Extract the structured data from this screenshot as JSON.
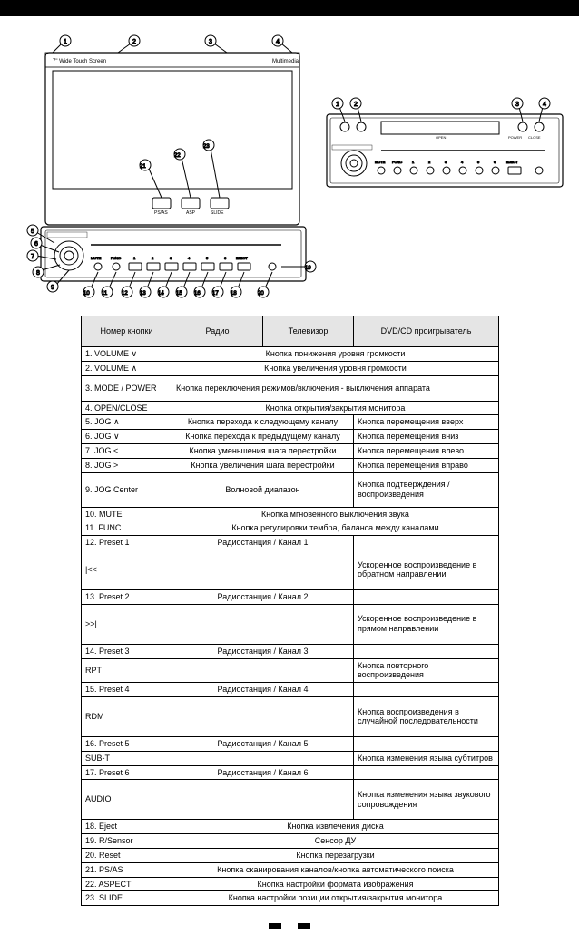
{
  "headers": {
    "col1": "Номер кнопки",
    "col2": "Радио",
    "col3": "Телевизор",
    "col4": "DVD/CD проигрыватель"
  },
  "rows": [
    {
      "label": "1. VOLUME ∨",
      "span": "full",
      "text": "Кнопка понижения уровня громкости"
    },
    {
      "label": "2. VOLUME ∧",
      "span": "full",
      "text": "Кнопка увеличения уровня громкости"
    },
    {
      "label": "3. MODE / POWER",
      "span": "full",
      "text": "Кнопка переключения режимов/включения - выключения аппарата",
      "tall": true
    },
    {
      "label": "4. OPEN/CLOSE",
      "span": "full",
      "text": "Кнопка открытия/закрытия монитора"
    },
    {
      "label": "5. JOG ∧",
      "span": "split",
      "mid": "Кнопка перехода к следующему каналу",
      "right": "Кнопка перемещения вверх"
    },
    {
      "label": "6. JOG ∨",
      "span": "split",
      "mid": "Кнопка перехода к предыдущему каналу",
      "right": "Кнопка перемещения вниз"
    },
    {
      "label": "7. JOG <",
      "span": "split",
      "mid": "Кнопка уменьшения шага перестройки",
      "right": "Кнопка перемещения влево"
    },
    {
      "label": "8. JOG >",
      "span": "split",
      "mid": "Кнопка увеличения шага перестройки",
      "right": "Кнопка перемещения вправо"
    },
    {
      "label": "9. JOG Center",
      "span": "split",
      "mid": "Волновой диапазон",
      "right": "Кнопка подтверждения / воспроизведения",
      "tall": true
    },
    {
      "label": "10. MUTE",
      "span": "full",
      "text": "Кнопка мгновенного выключения звука"
    },
    {
      "label": "11. FUNC",
      "span": "full",
      "text": "Кнопка регулировки тембра, баланса между каналами"
    },
    {
      "label": "12. Preset 1",
      "span": "mid",
      "text": "Радиостанция / Канал 1"
    },
    {
      "label": "|<<",
      "span": "right",
      "right": "Ускоренное воспроизведение в обратном направлении",
      "tall": true
    },
    {
      "label": "13. Preset 2",
      "span": "mid",
      "text": "Радиостанция / Канал 2"
    },
    {
      "label": ">>|",
      "span": "right",
      "right": "Ускоренное воспроизведение в прямом направлении",
      "tall": true
    },
    {
      "label": "14. Preset 3",
      "span": "mid",
      "text": "Радиостанция / Канал 3"
    },
    {
      "label": "RPT",
      "span": "right",
      "right": "Кнопка повторного воспроизведения"
    },
    {
      "label": "15. Preset 4",
      "span": "mid",
      "text": "Радиостанция / Канал 4"
    },
    {
      "label": "RDM",
      "span": "right",
      "right": "Кнопка воспроизведения в случайной последовательности",
      "tall": true
    },
    {
      "label": "16. Preset 5",
      "span": "mid",
      "text": "Радиостанция / Канал 5"
    },
    {
      "label": "SUB-T",
      "span": "right",
      "right": "Кнопка изменения языка субтитров"
    },
    {
      "label": "17. Preset 6",
      "span": "mid",
      "text": "Радиостанция / Канал 6"
    },
    {
      "label": "AUDIO",
      "span": "right",
      "right": "Кнопка изменения языка звукового сопровождения",
      "tall": true
    },
    {
      "label": "18. Eject",
      "span": "full",
      "text": "Кнопка извлечения диска"
    },
    {
      "label": "19. R/Sensor",
      "span": "full",
      "text": "Сенсор ДУ"
    },
    {
      "label": "20. Reset",
      "span": "full",
      "text": "Кнопка перезагрузки"
    },
    {
      "label": "21. PS/AS",
      "span": "full",
      "text": "Кнопка сканирования каналов/кнопка автоматического поиска"
    },
    {
      "label": "22. ASPECT",
      "span": "full",
      "text": "Кнопка настройки формата изображения"
    },
    {
      "label": "23. SLIDE",
      "span": "full",
      "text": "Кнопка настройки позиции открытия/закрытия монитора"
    }
  ],
  "screen_labels": {
    "tl": "7\" Wide Touch Screen",
    "tr": "Multimedia"
  },
  "buttons_below_screen": [
    "PS/AS",
    "ASP",
    "SLIDE"
  ],
  "main_controls": [
    "MUTE",
    "FUNC",
    "1",
    "2",
    "3",
    "4",
    "5",
    "6",
    "EJECT"
  ],
  "right_unit_top": [
    "POWER",
    "CLOSE",
    "OPEN"
  ],
  "right_unit_bottom": [
    "MUTE",
    "FUNC",
    "1",
    "2",
    "3",
    "4",
    "5",
    "6",
    "EJECT"
  ],
  "colors": {
    "line": "#000",
    "fill_light": "#fff",
    "bg": "#fff",
    "header_bg": "#e5e5e5"
  }
}
